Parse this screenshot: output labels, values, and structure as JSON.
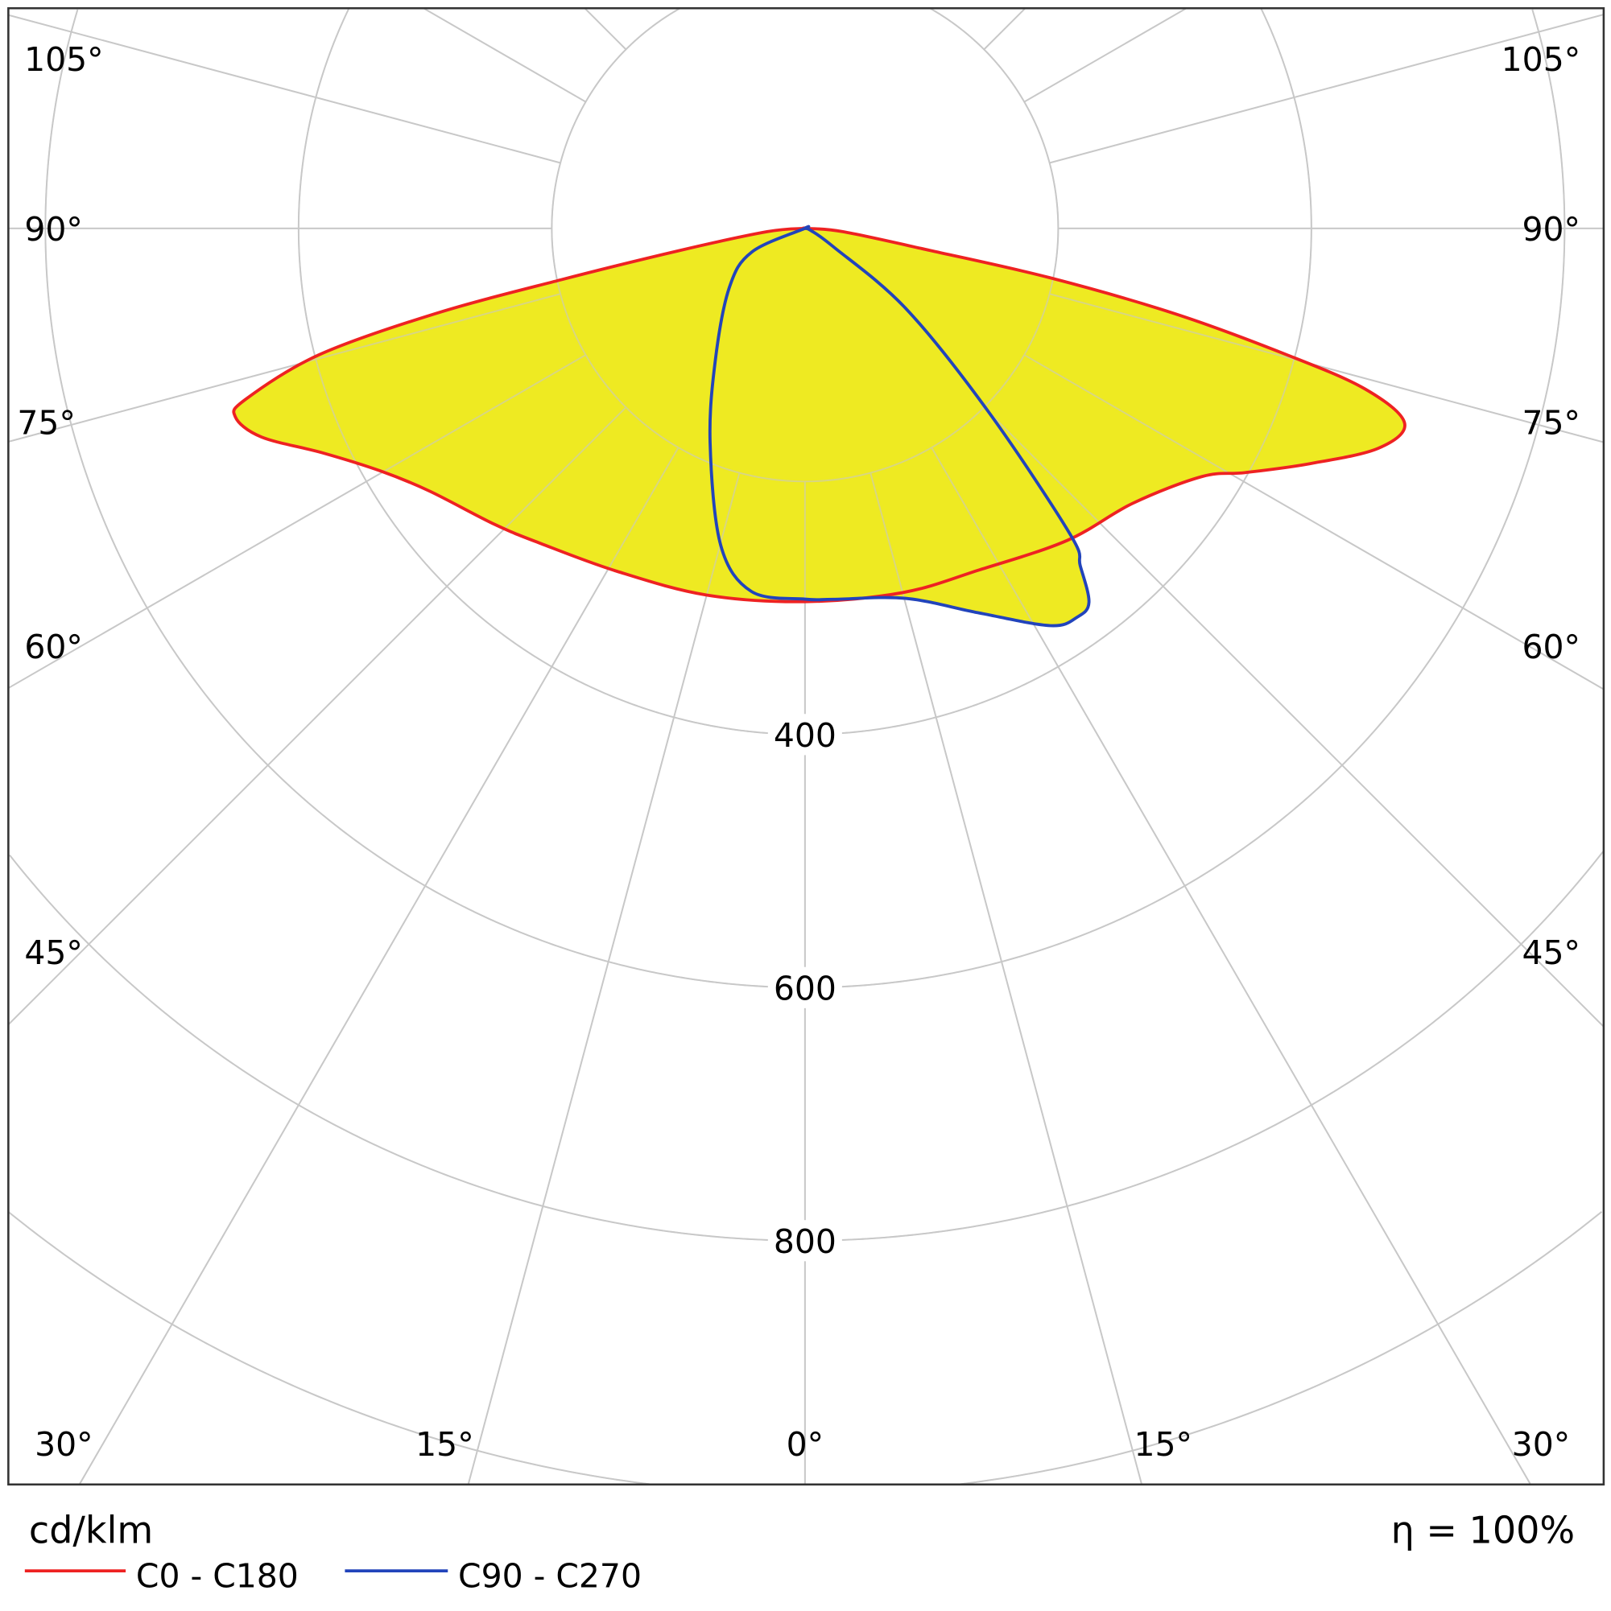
{
  "chart_data": {
    "type": "polar",
    "unit_label": "cd/klm",
    "efficiency_label": "η = 100%",
    "radial_ticks": [
      200,
      400,
      600,
      800,
      1000
    ],
    "radial_tick_labels": [
      "400",
      "600",
      "800"
    ],
    "rlim": [
      0,
      1000
    ],
    "angle_step_deg": 15,
    "angle_labels_left": [
      "105°",
      "90°",
      "75°",
      "60°",
      "45°",
      "30°",
      "15°"
    ],
    "angle_labels_right": [
      "105°",
      "90°",
      "75°",
      "60°",
      "45°",
      "30°",
      "15°"
    ],
    "angle_label_bottom": "0°",
    "grid": true,
    "legend_placement": "bottom-left",
    "fill_color": "#eeea22",
    "series": [
      {
        "name": "C0 - C180",
        "color": "#ee2222",
        "right_C0": [
          [
            0,
            295
          ],
          [
            15,
            298
          ],
          [
            27,
            303
          ],
          [
            40,
            322
          ],
          [
            50,
            338
          ],
          [
            58,
            370
          ],
          [
            61,
            398
          ],
          [
            65,
            440
          ],
          [
            69,
            485
          ],
          [
            72,
            498
          ],
          [
            74,
            460
          ],
          [
            75.3,
            393
          ],
          [
            77,
            300
          ],
          [
            78.6,
            197
          ],
          [
            80,
            100
          ],
          [
            85,
            30
          ],
          [
            90,
            0
          ]
        ],
        "left_C180": [
          [
            0,
            295
          ],
          [
            15,
            300
          ],
          [
            28.7,
            309
          ],
          [
            40,
            325
          ],
          [
            46.4,
            339
          ],
          [
            55,
            362
          ],
          [
            60.2,
            386
          ],
          [
            65,
            420
          ],
          [
            69,
            460
          ],
          [
            71.7,
            474
          ],
          [
            73,
            462
          ],
          [
            75.4,
            397
          ],
          [
            77,
            300
          ],
          [
            78.1,
            197
          ],
          [
            80,
            100
          ],
          [
            85,
            30
          ],
          [
            90,
            0
          ]
        ]
      },
      {
        "name": "C90 - C270",
        "color": "#2244bb",
        "right_C90": [
          [
            0,
            294
          ],
          [
            4.4,
            294
          ],
          [
            15.2,
            303
          ],
          [
            24.2,
            333
          ],
          [
            31.7,
            369
          ],
          [
            35,
            375
          ],
          [
            37.2,
            371
          ],
          [
            39.2,
            344
          ],
          [
            40.9,
            320
          ],
          [
            45,
            205
          ],
          [
            51.5,
            102
          ],
          [
            57,
            27
          ],
          [
            70,
            5
          ],
          [
            90,
            0
          ]
        ],
        "left_C270": [
          [
            0,
            293
          ],
          [
            8.4,
            290
          ],
          [
            14.9,
            259
          ],
          [
            23.9,
            185
          ],
          [
            34.2,
            126
          ],
          [
            51.9,
            76
          ],
          [
            66,
            46
          ],
          [
            90,
            0
          ]
        ]
      }
    ]
  }
}
